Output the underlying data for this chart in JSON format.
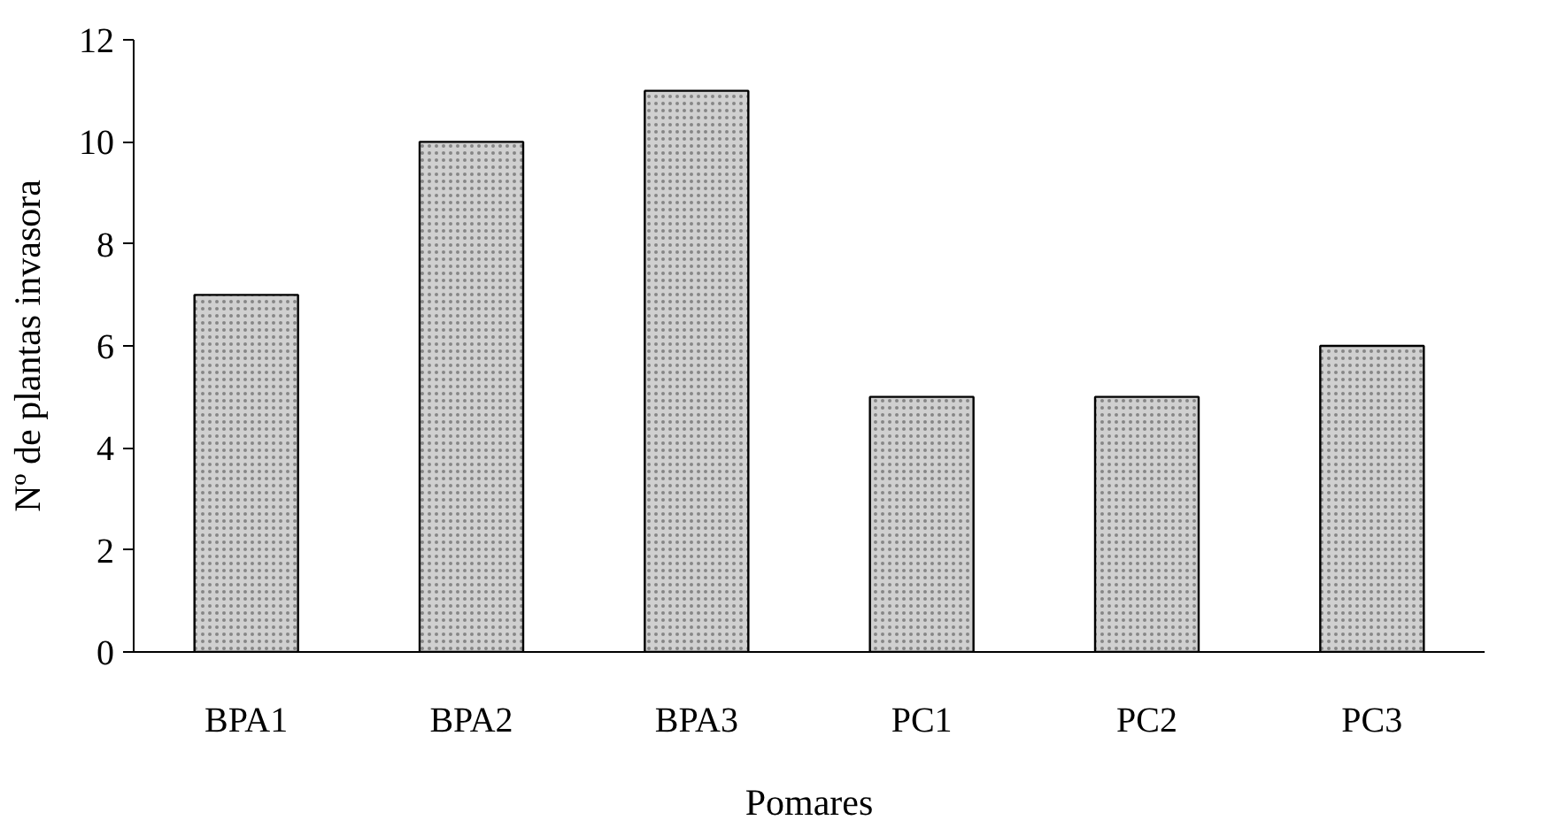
{
  "chart_data": {
    "type": "bar",
    "xlabel": "Pomares",
    "ylabel": "Nº de plantas invasora",
    "categories": [
      "BPA1",
      "BPA2",
      "BPA3",
      "PC1",
      "PC2",
      "PC3"
    ],
    "values": [
      7,
      10,
      11,
      5,
      5,
      6
    ],
    "color": "#d0d0d0",
    "ylim": [
      0,
      12
    ],
    "yticks": [
      0,
      2,
      4,
      6,
      8,
      10,
      12
    ],
    "grid": false
  }
}
